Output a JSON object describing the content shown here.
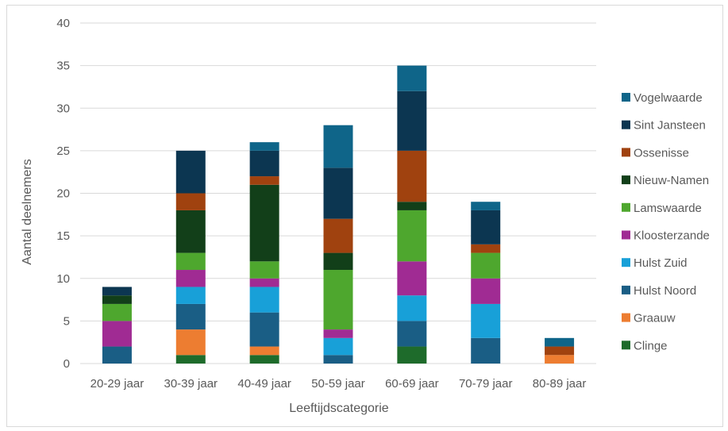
{
  "chart_data": {
    "type": "bar",
    "stacked": true,
    "title": "",
    "xlabel": "Leeftijdscategorie",
    "ylabel": "Aantal deelnemers",
    "ylim": [
      0,
      40
    ],
    "yticks": [
      0,
      5,
      10,
      15,
      20,
      25,
      30,
      35,
      40
    ],
    "grid": true,
    "legend_position": "right",
    "categories": [
      "20-29 jaar",
      "30-39 jaar",
      "40-49 jaar",
      "50-59 jaar",
      "60-69 jaar",
      "70-79 jaar",
      "80-89 jaar"
    ],
    "series": [
      {
        "name": "Clinge",
        "color": "#1e6b2b",
        "values": [
          0,
          1,
          1,
          0,
          2,
          0,
          0
        ]
      },
      {
        "name": "Graauw",
        "color": "#ed7d31",
        "values": [
          0,
          3,
          1,
          0,
          0,
          0,
          1
        ]
      },
      {
        "name": "Hulst Noord",
        "color": "#1a5e85",
        "values": [
          2,
          3,
          4,
          1,
          3,
          3,
          0
        ]
      },
      {
        "name": "Hulst Zuid",
        "color": "#18a0d8",
        "values": [
          0,
          2,
          3,
          2,
          3,
          4,
          0
        ]
      },
      {
        "name": "Kloosterzande",
        "color": "#a02b93",
        "values": [
          3,
          2,
          1,
          1,
          4,
          3,
          0
        ]
      },
      {
        "name": "Lamswaarde",
        "color": "#4ea72e",
        "values": [
          2,
          2,
          2,
          7,
          6,
          3,
          0
        ]
      },
      {
        "name": "Nieuw-Namen",
        "color": "#123f19",
        "values": [
          1,
          5,
          9,
          2,
          1,
          0,
          0
        ]
      },
      {
        "name": "Ossenisse",
        "color": "#a0420f",
        "values": [
          0,
          2,
          1,
          4,
          6,
          1,
          1
        ]
      },
      {
        "name": "Sint Jansteen",
        "color": "#0c3651",
        "values": [
          1,
          5,
          3,
          6,
          7,
          4,
          0
        ]
      },
      {
        "name": "Vogelwaarde",
        "color": "#0f6589",
        "values": [
          0,
          0,
          1,
          5,
          3,
          1,
          1
        ]
      }
    ]
  }
}
